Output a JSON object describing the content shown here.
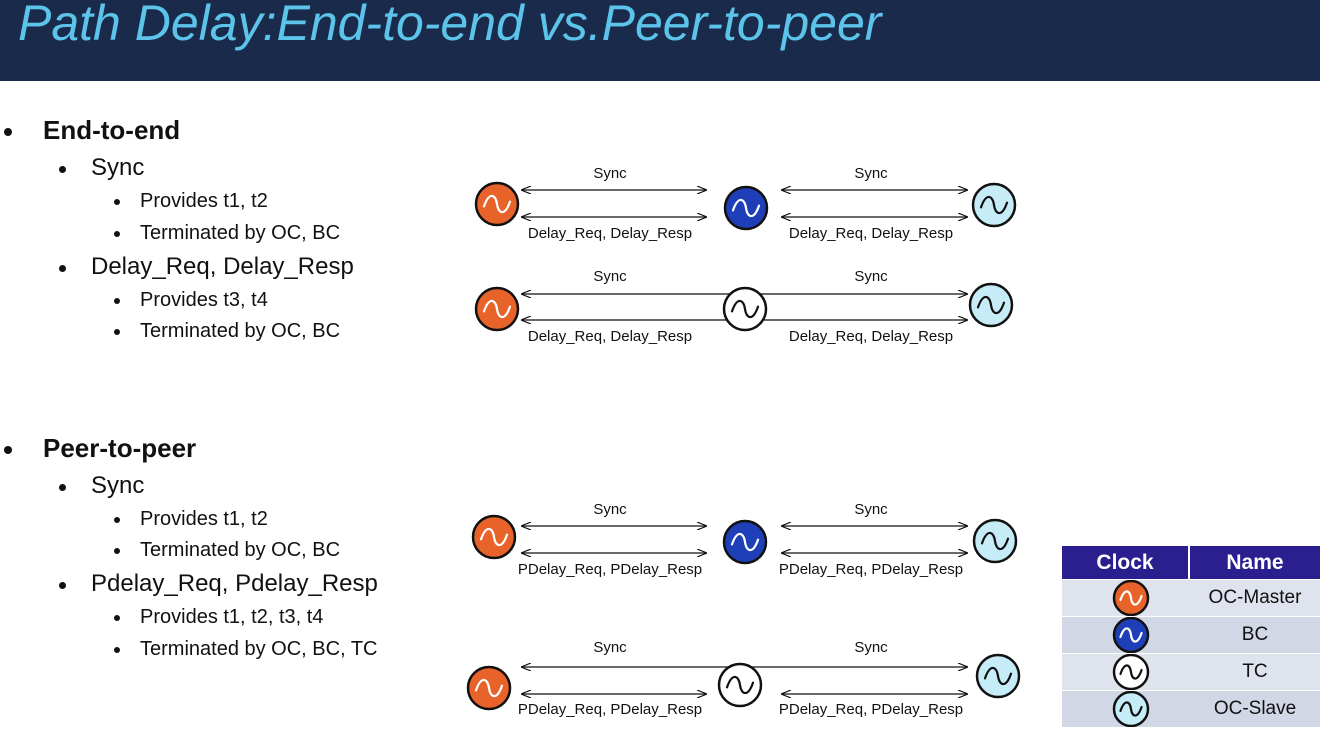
{
  "title": "Path Delay:End-to-end vs.Peer-to-peer",
  "sections": [
    {
      "heading": "End-to-end",
      "items": [
        {
          "label": "Sync",
          "sub": [
            "Provides t1, t2",
            "Terminated by OC, BC"
          ]
        },
        {
          "label": "Delay_Req, Delay_Resp",
          "sub": [
            "Provides t3, t4",
            "Terminated by OC, BC"
          ]
        }
      ]
    },
    {
      "heading": "Peer-to-peer",
      "items": [
        {
          "label": "Sync",
          "sub": [
            "Provides t1, t2",
            "Terminated by OC, BC"
          ]
        },
        {
          "label": "Pdelay_Req, Pdelay_Resp",
          "sub": [
            "Provides t1, t2, t3, t4",
            "Terminated by OC, BC, TC"
          ]
        }
      ]
    }
  ],
  "diagrams": {
    "sync_label": "Sync",
    "e2e_label": "Delay_Req, Delay_Resp",
    "p2p_label": "PDelay_Req, PDelay_Resp"
  },
  "legend": {
    "header_clock": "Clock",
    "header_name": "Name",
    "rows": [
      {
        "name": "OC-Master",
        "color": "#e8632a"
      },
      {
        "name": "BC",
        "color": "#1f3fb8"
      },
      {
        "name": "TC",
        "color": "#ffffff"
      },
      {
        "name": "OC-Slave",
        "color": "#c6ecf7"
      }
    ]
  },
  "colors": {
    "title_bar": "#1a2a4a",
    "title_text": "#5cc3ea",
    "oc_master": "#e8632a",
    "bc": "#1f3fb8",
    "tc": "#ffffff",
    "oc_slave": "#c6ecf7",
    "legend_header": "#2b1f8f"
  }
}
